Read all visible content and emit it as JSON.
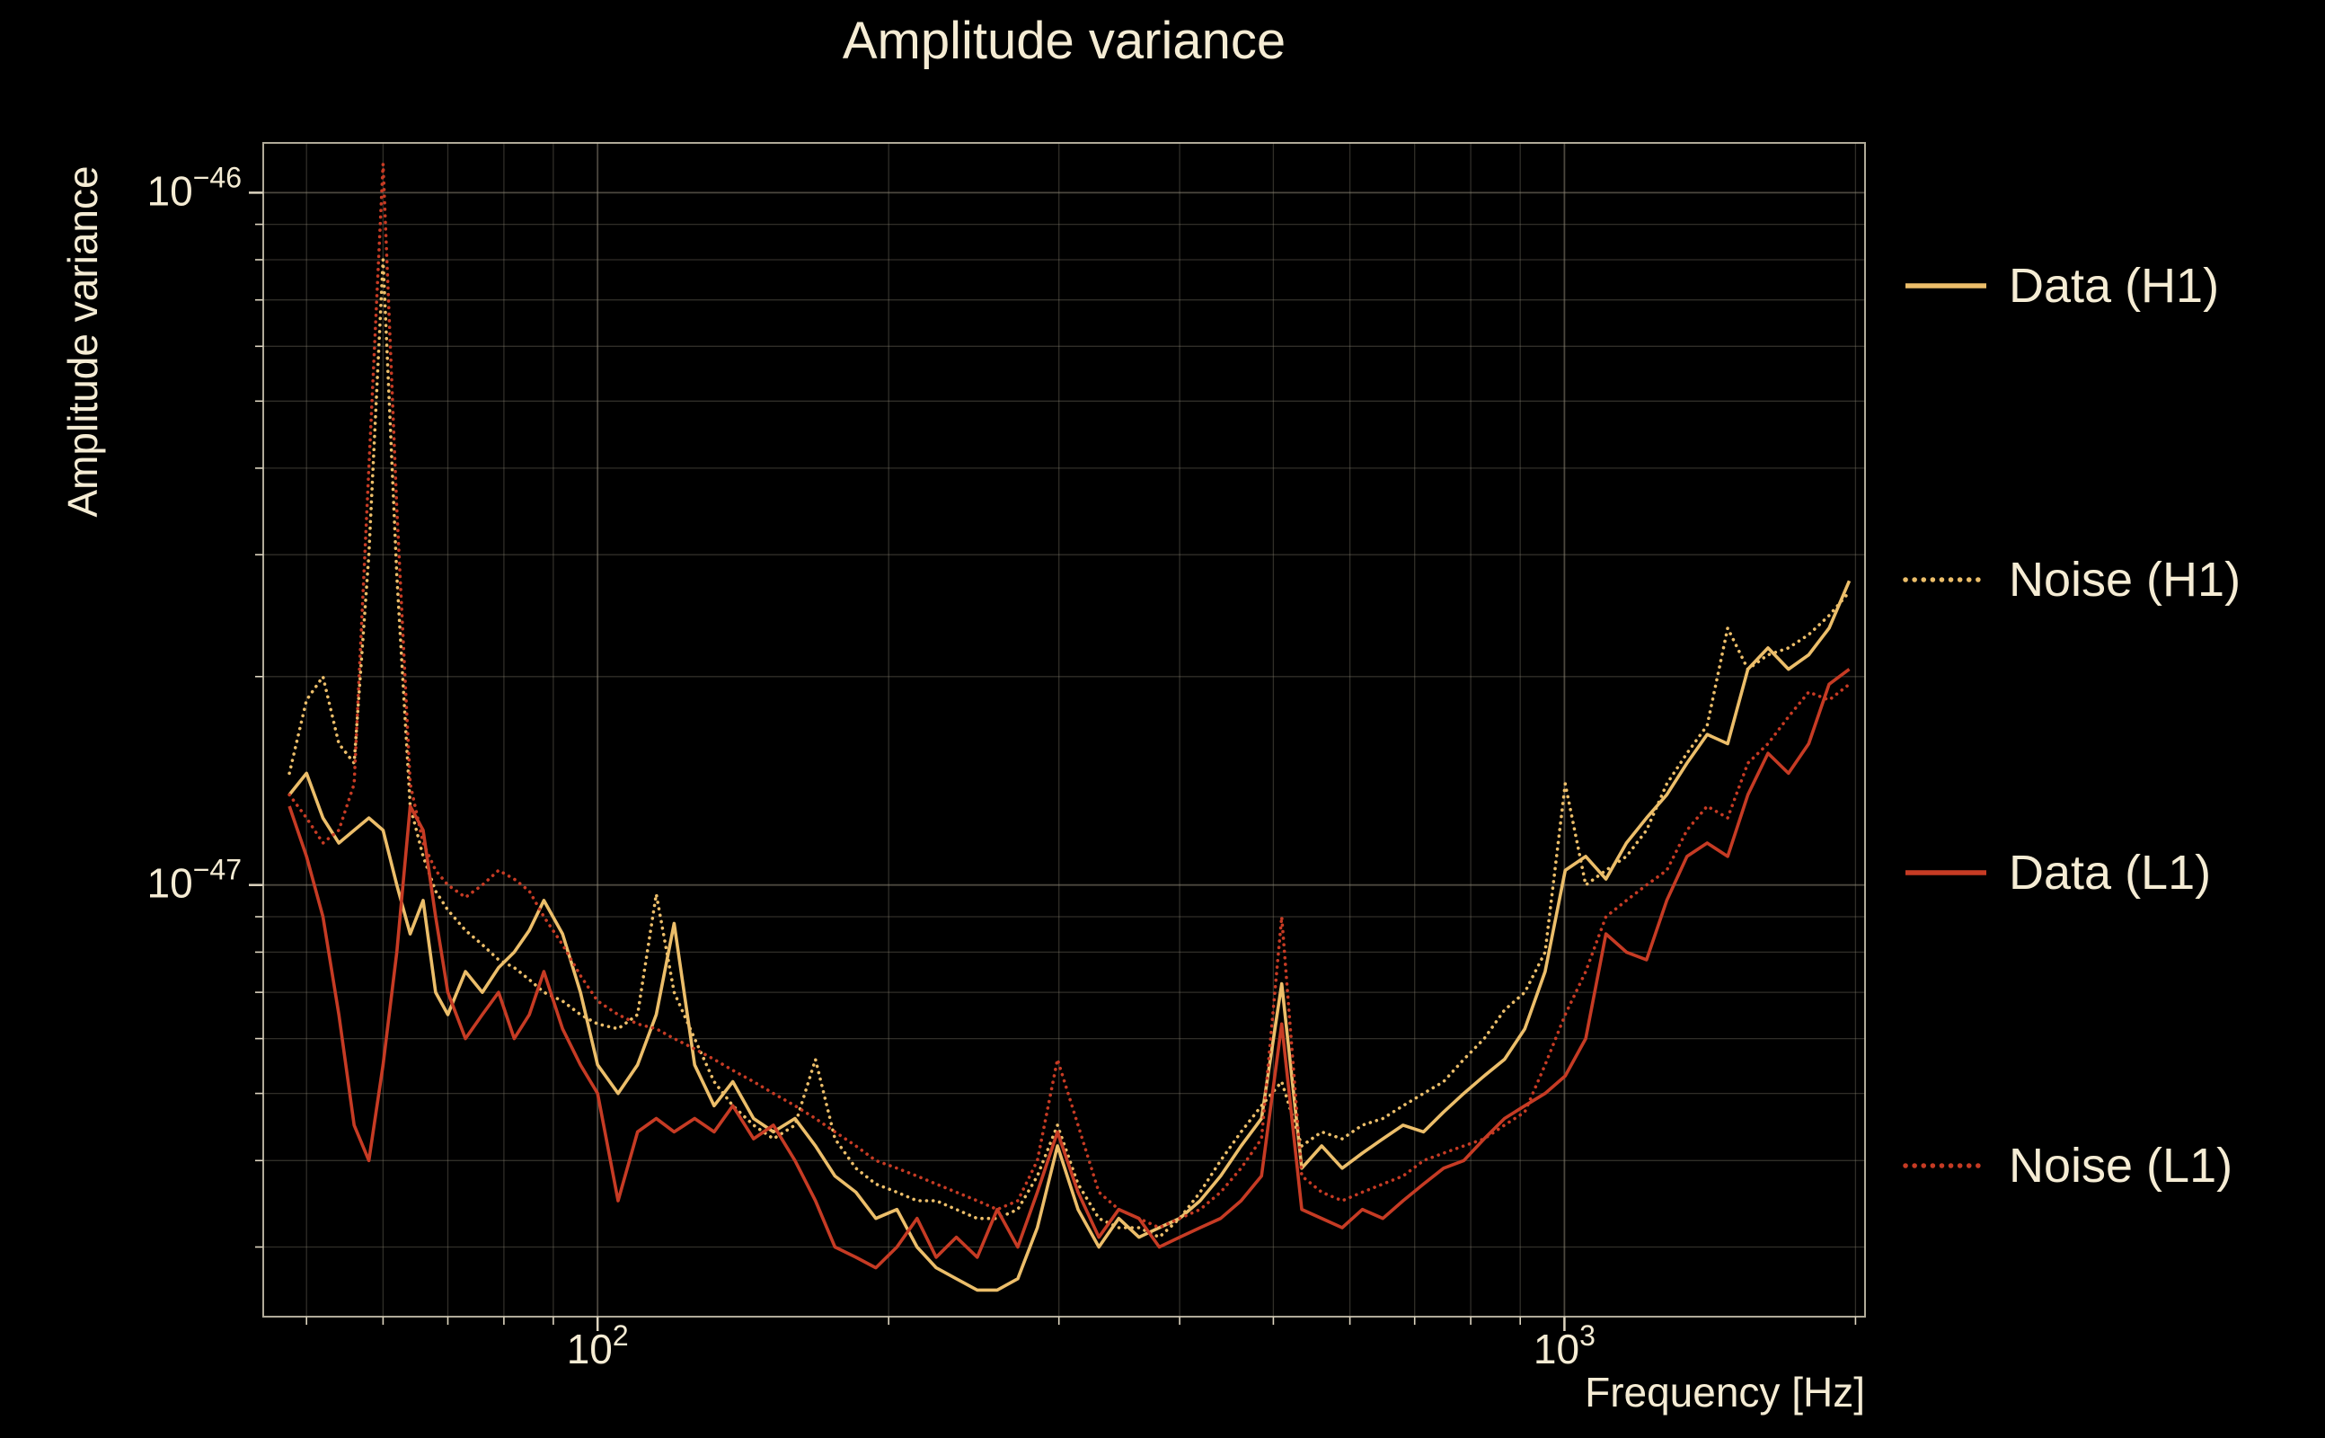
{
  "figure": {
    "background": "#000000",
    "text_color": "#f5ecd4",
    "grid_color": "#8a8474",
    "frame_color": "#cfc8b4"
  },
  "chart_data": {
    "type": "line",
    "title": "Amplitude variance",
    "xlabel": "Frequency [Hz]",
    "ylabel": "Amplitude variance",
    "x_scale": "log",
    "y_scale": "log",
    "xlim": [
      45.1,
      2046
    ],
    "ylim": [
      2.38e-48,
      1.18e-46
    ],
    "grid": true,
    "legend_position": "right-outside",
    "x_ticks": [
      {
        "value": 100,
        "base": "10",
        "exp": "2"
      },
      {
        "value": 1000,
        "base": "10",
        "exp": "3"
      }
    ],
    "y_ticks": [
      {
        "value": 1e-46,
        "base": "10",
        "exp": "−46"
      },
      {
        "value": 1e-47,
        "base": "10",
        "exp": "−47"
      }
    ],
    "x_gridlines": [
      50,
      60,
      70,
      80,
      90,
      100,
      200,
      300,
      400,
      500,
      600,
      700,
      800,
      900,
      1000,
      2000
    ],
    "y_gridlines": [
      3e-48,
      4e-48,
      5e-48,
      6e-48,
      7e-48,
      8e-48,
      9e-48,
      1e-47,
      2e-47,
      3e-47,
      4e-47,
      5e-47,
      6e-47,
      7e-47,
      8e-47,
      9e-47,
      1e-46
    ],
    "value_unit": 1e-48,
    "frequencies_hz": [
      48,
      50,
      52,
      54,
      56,
      58,
      60,
      62,
      64,
      66,
      68,
      70,
      73,
      76,
      79,
      82,
      85,
      88,
      92,
      96,
      100,
      105,
      110,
      115,
      120,
      126,
      132,
      138,
      145,
      152,
      160,
      168,
      176,
      185,
      194,
      204,
      214,
      224,
      235,
      247,
      259,
      272,
      285,
      299,
      314,
      330,
      346,
      363,
      381,
      400,
      420,
      441,
      463,
      486,
      510,
      535,
      561,
      589,
      618,
      649,
      681,
      715,
      750,
      787,
      826,
      867,
      910,
      955,
      1002,
      1052,
      1104,
      1159,
      1216,
      1276,
      1339,
      1405,
      1475,
      1548,
      1624,
      1705,
      1789,
      1878,
      1971
    ],
    "series": [
      {
        "name": "Data (H1)",
        "color": "#ecbe6a",
        "style": "solid",
        "values": [
          13.5,
          14.5,
          12.5,
          11.5,
          12,
          12.5,
          12,
          10,
          8.5,
          9.5,
          7,
          6.5,
          7.5,
          7,
          7.6,
          8,
          8.6,
          9.5,
          8.5,
          7,
          5.5,
          5,
          5.5,
          6.5,
          8.8,
          5.5,
          4.8,
          5.2,
          4.6,
          4.4,
          4.6,
          4.2,
          3.8,
          3.6,
          3.3,
          3.4,
          3,
          2.8,
          2.7,
          2.6,
          2.6,
          2.7,
          3.2,
          4.2,
          3.4,
          3,
          3.3,
          3.1,
          3.2,
          3.3,
          3.5,
          3.8,
          4.2,
          4.6,
          7.2,
          3.9,
          4.2,
          3.9,
          4.1,
          4.3,
          4.5,
          4.4,
          4.7,
          5,
          5.3,
          5.6,
          6.2,
          7.5,
          10.5,
          11,
          10.2,
          11.5,
          12.5,
          13.5,
          15,
          16.5,
          16,
          20.5,
          22,
          20.5,
          21.5,
          23.5,
          27.5
        ]
      },
      {
        "name": "Noise (H1)",
        "color": "#ecbe6a",
        "style": "dotted",
        "values": [
          14.5,
          18.5,
          20,
          16,
          15,
          30,
          80,
          28,
          13,
          11,
          9.8,
          9.2,
          8.6,
          8.2,
          7.8,
          7.6,
          7.3,
          7,
          6.8,
          6.5,
          6.3,
          6.2,
          6.5,
          9.7,
          7,
          6,
          5.2,
          4.8,
          4.5,
          4.3,
          4.5,
          5.6,
          4.3,
          3.9,
          3.7,
          3.6,
          3.5,
          3.5,
          3.4,
          3.3,
          3.3,
          3.4,
          3.8,
          4.5,
          3.7,
          3.3,
          3.2,
          3.2,
          3.1,
          3.3,
          3.6,
          4,
          4.4,
          4.8,
          5.2,
          4.2,
          4.4,
          4.3,
          4.5,
          4.6,
          4.8,
          5,
          5.2,
          5.6,
          6,
          6.6,
          7,
          8,
          14,
          10,
          10.5,
          11,
          12,
          14,
          15.5,
          17,
          23.5,
          20.5,
          21.5,
          22,
          23,
          24.5,
          26.5
        ]
      },
      {
        "name": "Data (L1)",
        "color": "#c63b24",
        "style": "solid",
        "values": [
          13,
          11,
          9,
          6.5,
          4.5,
          4,
          5.5,
          8,
          13,
          12,
          9,
          7,
          6,
          6.5,
          7,
          6,
          6.5,
          7.5,
          6.2,
          5.5,
          5,
          3.5,
          4.4,
          4.6,
          4.4,
          4.6,
          4.4,
          4.8,
          4.3,
          4.5,
          4,
          3.5,
          3,
          2.9,
          2.8,
          3,
          3.3,
          2.9,
          3.1,
          2.9,
          3.4,
          3,
          3.6,
          4.4,
          3.6,
          3.1,
          3.4,
          3.3,
          3,
          3.1,
          3.2,
          3.3,
          3.5,
          3.8,
          6.3,
          3.4,
          3.3,
          3.2,
          3.4,
          3.3,
          3.5,
          3.7,
          3.9,
          4,
          4.3,
          4.6,
          4.8,
          5,
          5.3,
          6,
          8.5,
          8,
          7.8,
          9.5,
          11,
          11.5,
          11,
          13.5,
          15.5,
          14.5,
          16,
          19.5,
          20.5
        ]
      },
      {
        "name": "Noise (L1)",
        "color": "#c63b24",
        "style": "dotted",
        "values": [
          13.5,
          12.5,
          11.5,
          12,
          14,
          40,
          110,
          35,
          14,
          11.5,
          10.5,
          10,
          9.6,
          10,
          10.5,
          10.2,
          9.8,
          9,
          8.2,
          7.4,
          6.8,
          6.5,
          6.3,
          6.2,
          6,
          5.8,
          5.6,
          5.4,
          5.2,
          5,
          4.8,
          4.6,
          4.4,
          4.2,
          4,
          3.9,
          3.8,
          3.7,
          3.6,
          3.5,
          3.4,
          3.5,
          4,
          5.6,
          4.5,
          3.6,
          3.4,
          3.3,
          3.2,
          3.3,
          3.4,
          3.6,
          3.9,
          4.3,
          9,
          3.8,
          3.6,
          3.5,
          3.6,
          3.7,
          3.8,
          4,
          4.1,
          4.2,
          4.3,
          4.5,
          4.7,
          5.5,
          6.5,
          7.5,
          9,
          9.5,
          10,
          10.5,
          12,
          13,
          12.5,
          15,
          16,
          17.5,
          19,
          18.5,
          19.5
        ]
      }
    ]
  }
}
